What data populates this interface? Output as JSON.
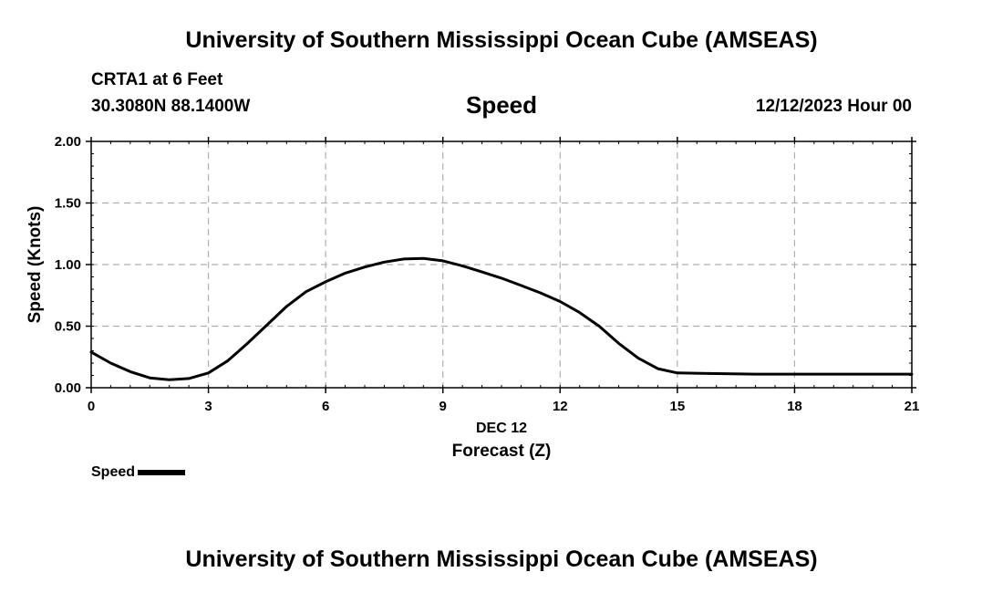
{
  "header": {
    "top_title": "University of Southern Mississippi Ocean Cube (AMSEAS)",
    "station": "CRTA1 at 6 Feet",
    "coords": "30.3080N  88.1400W",
    "variable": "Speed",
    "datetime": "12/12/2023 Hour 00",
    "bottom_title": "University of Southern Mississippi Ocean Cube (AMSEAS)"
  },
  "legend": {
    "label": "Speed",
    "color": "#000000"
  },
  "chart_data": {
    "type": "line",
    "title": "Speed",
    "xlabel": "Forecast (Z)",
    "xsublabel": "DEC 12",
    "ylabel": "Speed (Knots)",
    "xlim": [
      0,
      21
    ],
    "ylim": [
      0,
      2
    ],
    "xticks": [
      0,
      3,
      6,
      9,
      12,
      15,
      18,
      21
    ],
    "xtick_labels": [
      "0",
      "3",
      "6",
      "9",
      "12",
      "15",
      "18",
      "21"
    ],
    "yticks": [
      0,
      0.5,
      1,
      1.5,
      2
    ],
    "ytick_labels": [
      "0.00",
      "0.50",
      "1.00",
      "1.50",
      "2.00"
    ],
    "grid": true,
    "series": [
      {
        "name": "Speed",
        "color": "#000000",
        "x": [
          0,
          0.5,
          1,
          1.5,
          2,
          2.5,
          3,
          3.5,
          4,
          4.5,
          5,
          5.5,
          6,
          6.5,
          7,
          7.5,
          8,
          8.5,
          9,
          9.5,
          10,
          10.5,
          11,
          11.5,
          12,
          12.5,
          13,
          13.5,
          14,
          14.5,
          15,
          16,
          17,
          18,
          19,
          20,
          21
        ],
        "y": [
          0.29,
          0.2,
          0.13,
          0.08,
          0.065,
          0.075,
          0.12,
          0.22,
          0.36,
          0.51,
          0.66,
          0.78,
          0.86,
          0.93,
          0.98,
          1.02,
          1.045,
          1.05,
          1.03,
          0.99,
          0.94,
          0.89,
          0.83,
          0.77,
          0.7,
          0.61,
          0.5,
          0.36,
          0.24,
          0.155,
          0.12,
          0.115,
          0.11,
          0.11,
          0.11,
          0.11,
          0.11
        ]
      }
    ]
  }
}
